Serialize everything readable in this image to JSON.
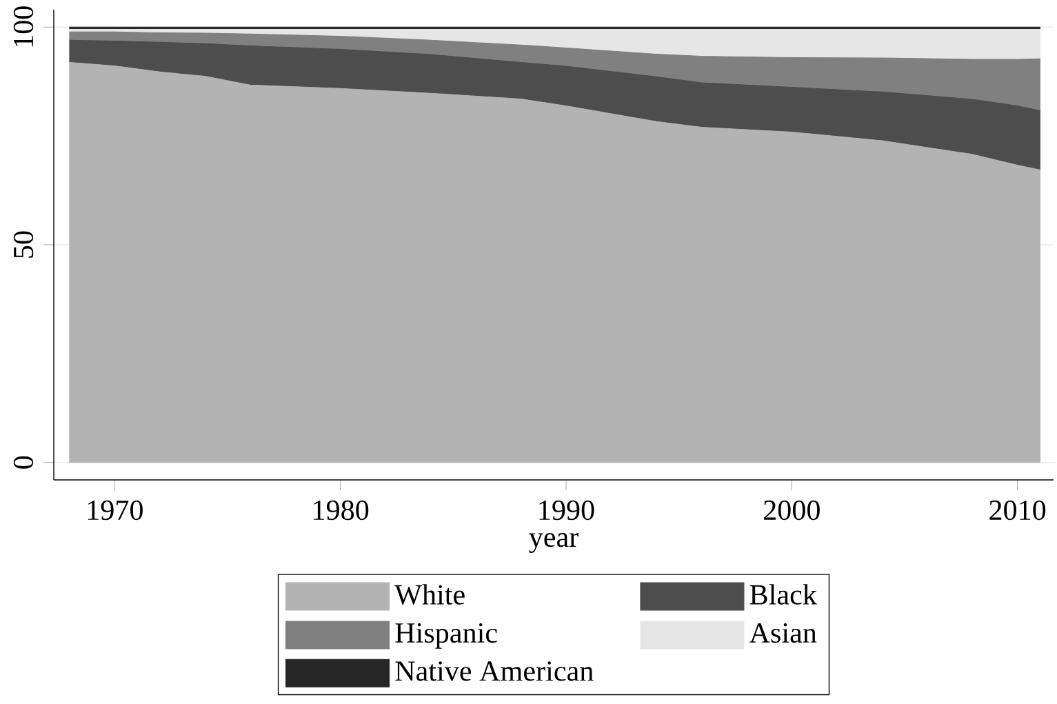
{
  "chart_data": {
    "type": "area",
    "stacked": true,
    "xlabel": "year",
    "x": [
      1968,
      1970,
      1972,
      1974,
      1976,
      1980,
      1984,
      1988,
      1990,
      1994,
      1996,
      2000,
      2004,
      2008,
      2010,
      2011
    ],
    "series": [
      {
        "name": "White",
        "color": "#b3b3b3",
        "values": [
          91.9,
          91.1,
          89.7,
          88.7,
          86.7,
          85.9,
          84.8,
          83.5,
          81.9,
          78.3,
          77.0,
          75.9,
          73.9,
          70.8,
          68.3,
          67.2
        ]
      },
      {
        "name": "Black",
        "color": "#4d4d4d",
        "values": [
          5.1,
          5.7,
          6.8,
          7.5,
          9.0,
          9.0,
          8.9,
          8.4,
          9.1,
          10.3,
          10.2,
          10.3,
          11.2,
          12.6,
          13.6,
          13.6
        ]
      },
      {
        "name": "Hispanic",
        "color": "#808080",
        "values": [
          1.9,
          2.1,
          2.2,
          2.4,
          2.7,
          3.0,
          3.3,
          4.0,
          4.2,
          5.2,
          6.1,
          6.8,
          7.8,
          9.2,
          10.7,
          11.9
        ]
      },
      {
        "name": "Asian",
        "color": "#e6e6e6",
        "values": [
          0.6,
          0.6,
          0.8,
          0.9,
          1.1,
          1.6,
          2.5,
          3.6,
          4.3,
          5.7,
          6.2,
          6.5,
          6.6,
          6.9,
          6.9,
          6.8
        ]
      },
      {
        "name": "Native American",
        "color": "#262626",
        "values": [
          0.5,
          0.5,
          0.5,
          0.5,
          0.5,
          0.5,
          0.5,
          0.5,
          0.5,
          0.5,
          0.5,
          0.5,
          0.5,
          0.5,
          0.5,
          0.5
        ]
      }
    ],
    "xlim": [
      1967.3,
      2011.6
    ],
    "ylim": [
      -4,
      104
    ],
    "xticks": [
      1970,
      1980,
      1990,
      2000,
      2010
    ],
    "yticks": [
      0,
      50,
      100
    ],
    "grid": "y",
    "legend": "bottom"
  }
}
